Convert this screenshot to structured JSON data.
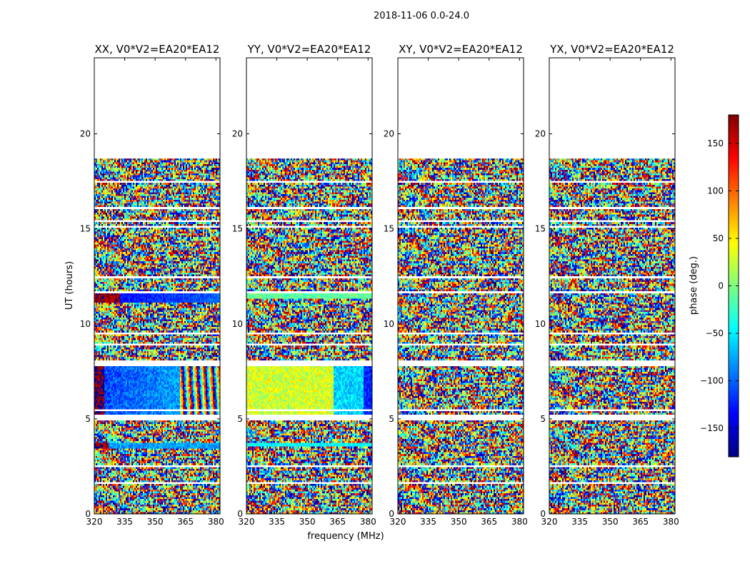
{
  "suptitle": "2018-11-06 0.0-24.0",
  "xlabel": "frequency (MHz)",
  "ylabel": "UT (hours)",
  "colorbar": {
    "label": "phase (deg.)",
    "range": [
      -180,
      180
    ],
    "ticks": [
      150,
      100,
      50,
      0,
      -50,
      -100,
      -150
    ],
    "tick_labels": [
      "150",
      "100",
      "50",
      "0",
      "−50",
      "−100",
      "−150"
    ],
    "colormap": "jet",
    "colors": [
      "#00007f",
      "#0000ff",
      "#007fff",
      "#00ffff",
      "#7fff7f",
      "#ffff00",
      "#ff7f00",
      "#ff0000",
      "#7f0000"
    ]
  },
  "chart_data": [
    {
      "type": "heatmap",
      "title": "XX, V0*V2=EA20*EA12",
      "pattern": "xx",
      "xlim": [
        320,
        382
      ],
      "ylim": [
        0,
        24
      ],
      "xticks": [
        320,
        335,
        350,
        365,
        380
      ],
      "yticks": [
        0,
        5,
        10,
        15,
        20
      ],
      "data_extent_hours": [
        0,
        18.7
      ]
    },
    {
      "type": "heatmap",
      "title": "YY, V0*V2=EA20*EA12",
      "pattern": "yy",
      "xlim": [
        320,
        382
      ],
      "ylim": [
        0,
        24
      ],
      "xticks": [
        320,
        335,
        350,
        365,
        380
      ],
      "yticks": [
        0,
        5,
        10,
        15,
        20
      ],
      "data_extent_hours": [
        0,
        18.7
      ]
    },
    {
      "type": "heatmap",
      "title": "XY, V0*V2=EA20*EA12",
      "pattern": "noise",
      "xlim": [
        320,
        382
      ],
      "ylim": [
        0,
        24
      ],
      "xticks": [
        320,
        335,
        350,
        365,
        380
      ],
      "yticks": [
        0,
        5,
        10,
        15,
        20
      ],
      "data_extent_hours": [
        0,
        18.7
      ]
    },
    {
      "type": "heatmap",
      "title": "YX, V0*V2=EA20*EA12",
      "pattern": "noise",
      "xlim": [
        320,
        382
      ],
      "ylim": [
        0,
        24
      ],
      "xticks": [
        320,
        335,
        350,
        365,
        380
      ],
      "yticks": [
        0,
        5,
        10,
        15,
        20
      ],
      "data_extent_hours": [
        0,
        18.7
      ]
    }
  ],
  "flagged_gap_hours": [
    [
      0.45,
      0.52
    ],
    [
      0.75,
      0.82
    ],
    [
      1.58,
      1.68
    ],
    [
      2.5,
      2.56
    ],
    [
      3.2,
      3.27
    ],
    [
      4.9,
      5.2
    ],
    [
      5.42,
      5.48
    ],
    [
      7.8,
      8.1
    ],
    [
      8.9,
      8.96
    ],
    [
      9.48,
      9.54
    ],
    [
      9.83,
      9.87
    ],
    [
      11.58,
      11.72
    ],
    [
      12.45,
      12.5
    ],
    [
      13.0,
      13.04
    ],
    [
      14.14,
      14.2
    ],
    [
      15.1,
      15.15
    ],
    [
      15.4,
      15.45
    ],
    [
      16.08,
      16.12
    ],
    [
      16.98,
      17.03
    ],
    [
      17.45,
      17.5
    ],
    [
      18.1,
      18.15
    ]
  ]
}
